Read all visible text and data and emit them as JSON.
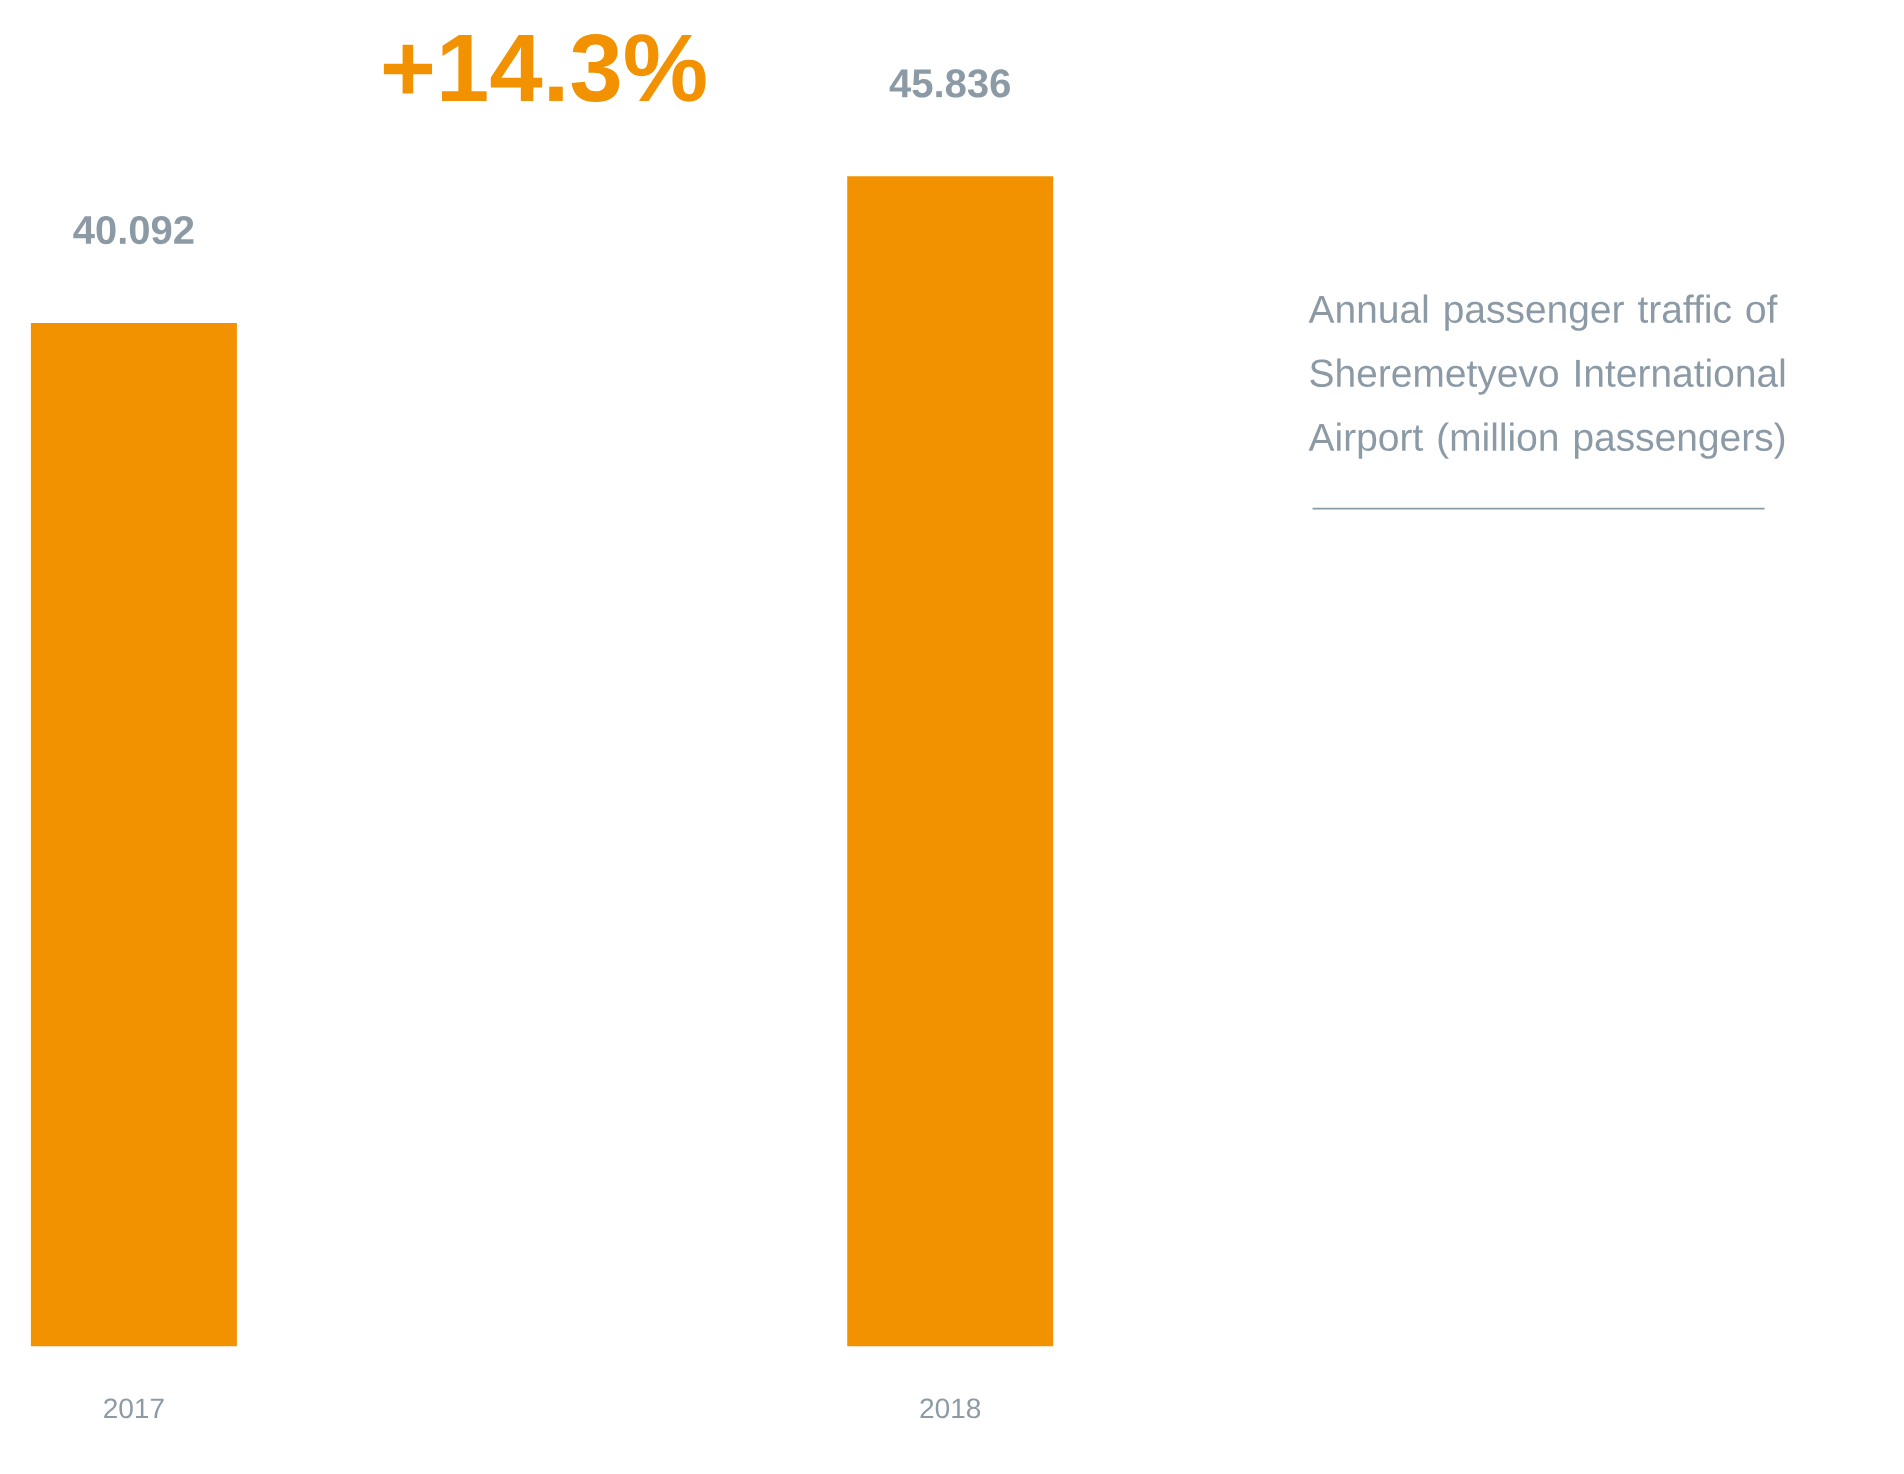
{
  "chart_data": {
    "type": "bar",
    "title": "Annual passenger traffic of Sheremetyevo International Airport (million passengers)",
    "categories": [
      "2017",
      "2018"
    ],
    "values": [
      40.092,
      45.836
    ],
    "color": "#f39200",
    "data_labels": true,
    "annotations": [
      "+14.3%"
    ]
  }
}
